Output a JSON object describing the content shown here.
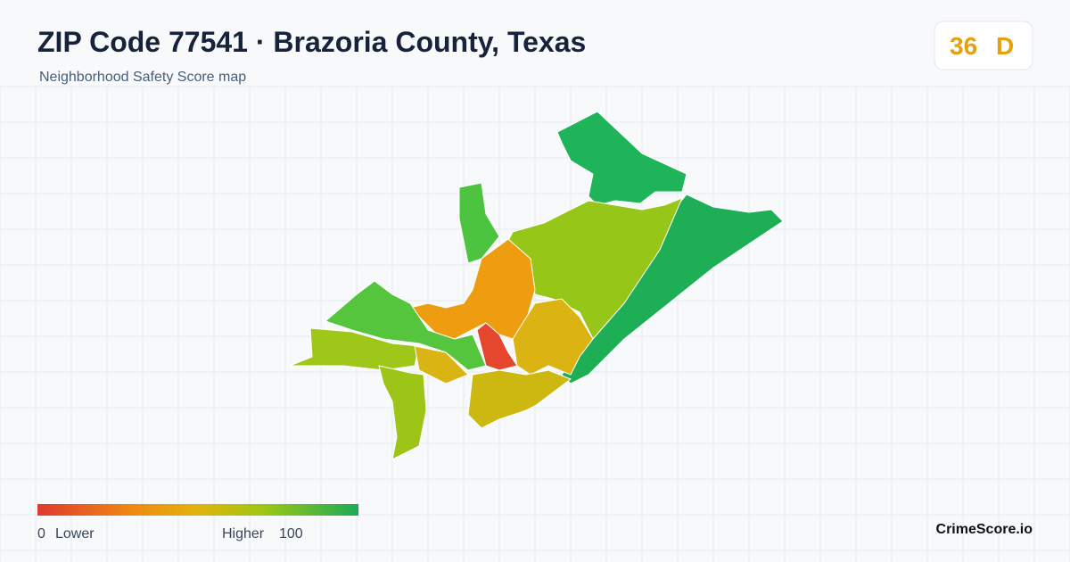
{
  "header": {
    "title": "ZIP Code 77541 · Brazoria County, Texas",
    "subtitle": "Neighborhood Safety Score map"
  },
  "score": {
    "value": "36",
    "grade": "D"
  },
  "legend": {
    "min": "0",
    "min_label": "Lower",
    "max_label": "Higher",
    "max": "100"
  },
  "footer": {
    "brand": "CrimeScore.io"
  }
}
